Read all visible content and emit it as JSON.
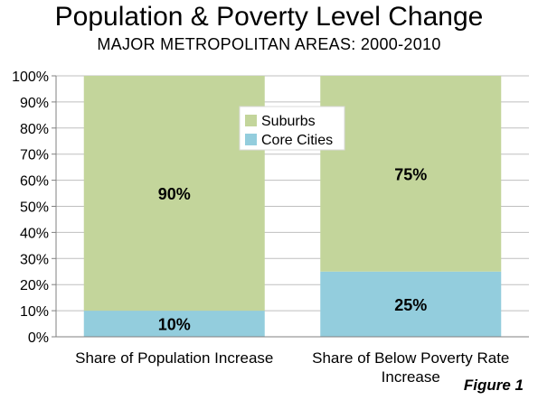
{
  "header": {
    "title": "Population & Poverty Level Change",
    "subtitle": "MAJOR METROPOLITAN AREAS: 2000-2010"
  },
  "footer": {
    "figure_label": "Figure 1"
  },
  "colors": {
    "suburbs": "#c3d59b",
    "core_cities": "#93cddd",
    "grid": "#bfbfbf"
  },
  "chart_data": {
    "type": "bar",
    "stacked": true,
    "categories": [
      [
        "Share of Population Increase"
      ],
      [
        "Share of Below Poverty Rate",
        "Increase"
      ]
    ],
    "series": [
      {
        "name": "Core Cities",
        "values": [
          10,
          25
        ],
        "labels": [
          "10%",
          "25%"
        ]
      },
      {
        "name": "Suburbs",
        "values": [
          90,
          75
        ],
        "labels": [
          "90%",
          "75%"
        ]
      }
    ],
    "ylim": [
      0,
      100
    ],
    "yticks": [
      "0%",
      "10%",
      "20%",
      "30%",
      "40%",
      "50%",
      "60%",
      "70%",
      "80%",
      "90%",
      "100%"
    ],
    "grid": true,
    "legend": [
      "Suburbs",
      "Core Cities"
    ],
    "legend_position": "center"
  }
}
